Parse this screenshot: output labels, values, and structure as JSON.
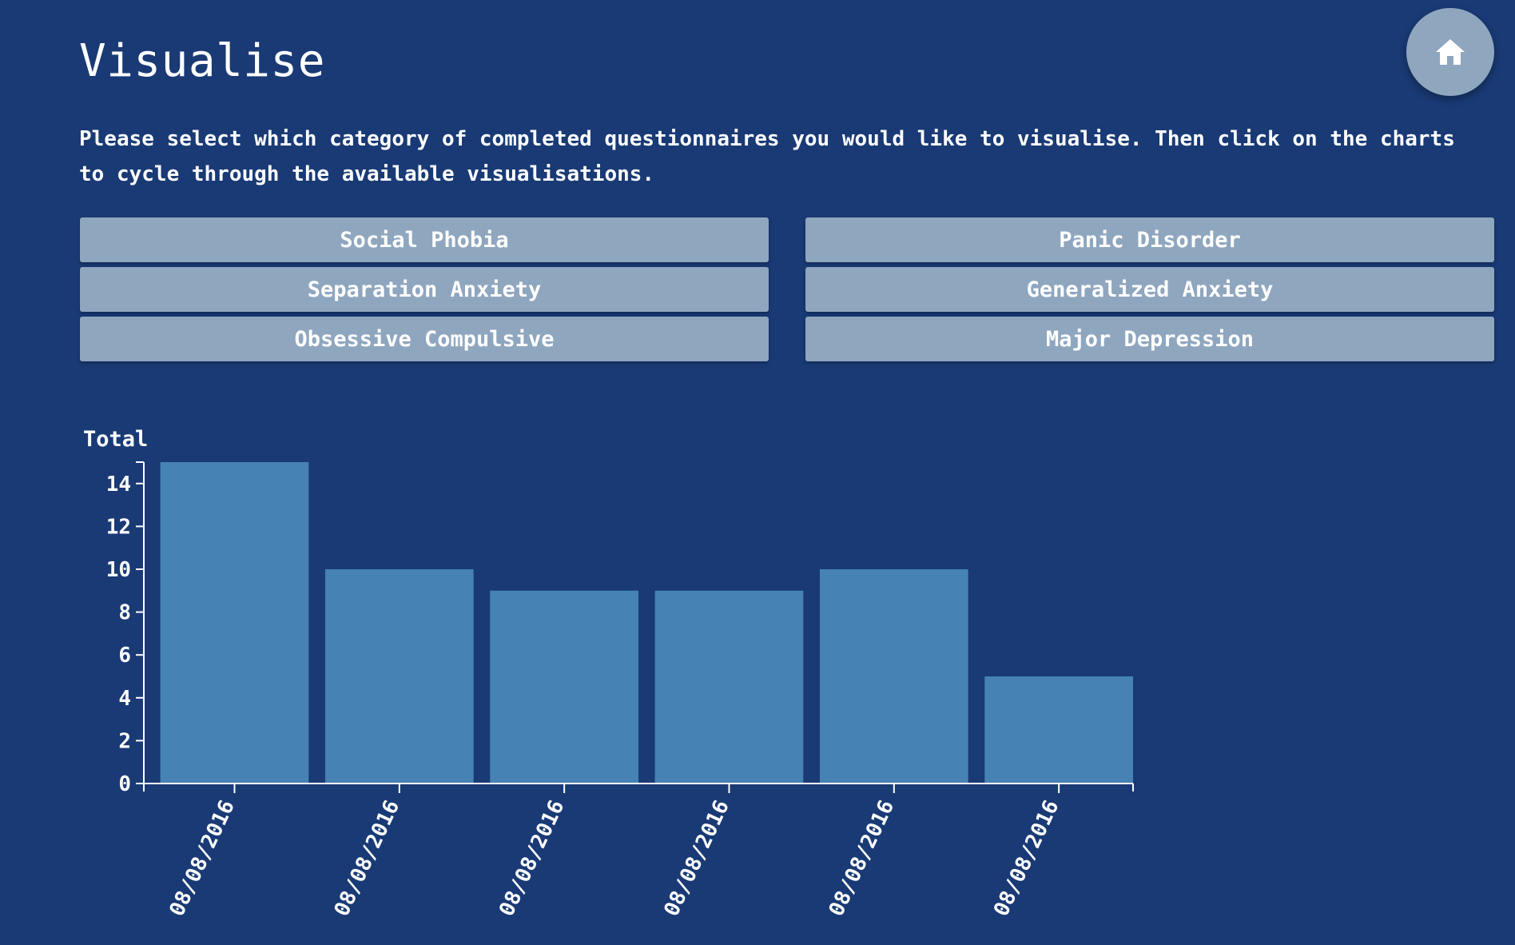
{
  "page": {
    "title": "Visualise",
    "intro": "Please select which category of completed questionnaires you would like to visualise. Then click on the charts to cycle through the available visualisations."
  },
  "home_button": {
    "icon": "home-icon"
  },
  "categories": [
    {
      "label": "Social Phobia"
    },
    {
      "label": "Panic Disorder"
    },
    {
      "label": "Separation Anxiety"
    },
    {
      "label": "Generalized Anxiety"
    },
    {
      "label": "Obsessive Compulsive"
    },
    {
      "label": "Major Depression"
    }
  ],
  "colors": {
    "background": "#193a75",
    "button": "#8fa6bf",
    "bar": "#4682b4",
    "text": "#ffffff"
  },
  "chart_data": {
    "type": "bar",
    "title": "",
    "xlabel": "",
    "ylabel": "Total",
    "categories": [
      "08/08/2016",
      "08/08/2016",
      "08/08/2016",
      "08/08/2016",
      "08/08/2016",
      "08/08/2016"
    ],
    "values": [
      15,
      10,
      9,
      9,
      10,
      5
    ],
    "ylim": [
      0,
      15
    ],
    "yticks": [
      0,
      2,
      4,
      6,
      8,
      10,
      12,
      14
    ],
    "grid": false,
    "legend": "none"
  }
}
